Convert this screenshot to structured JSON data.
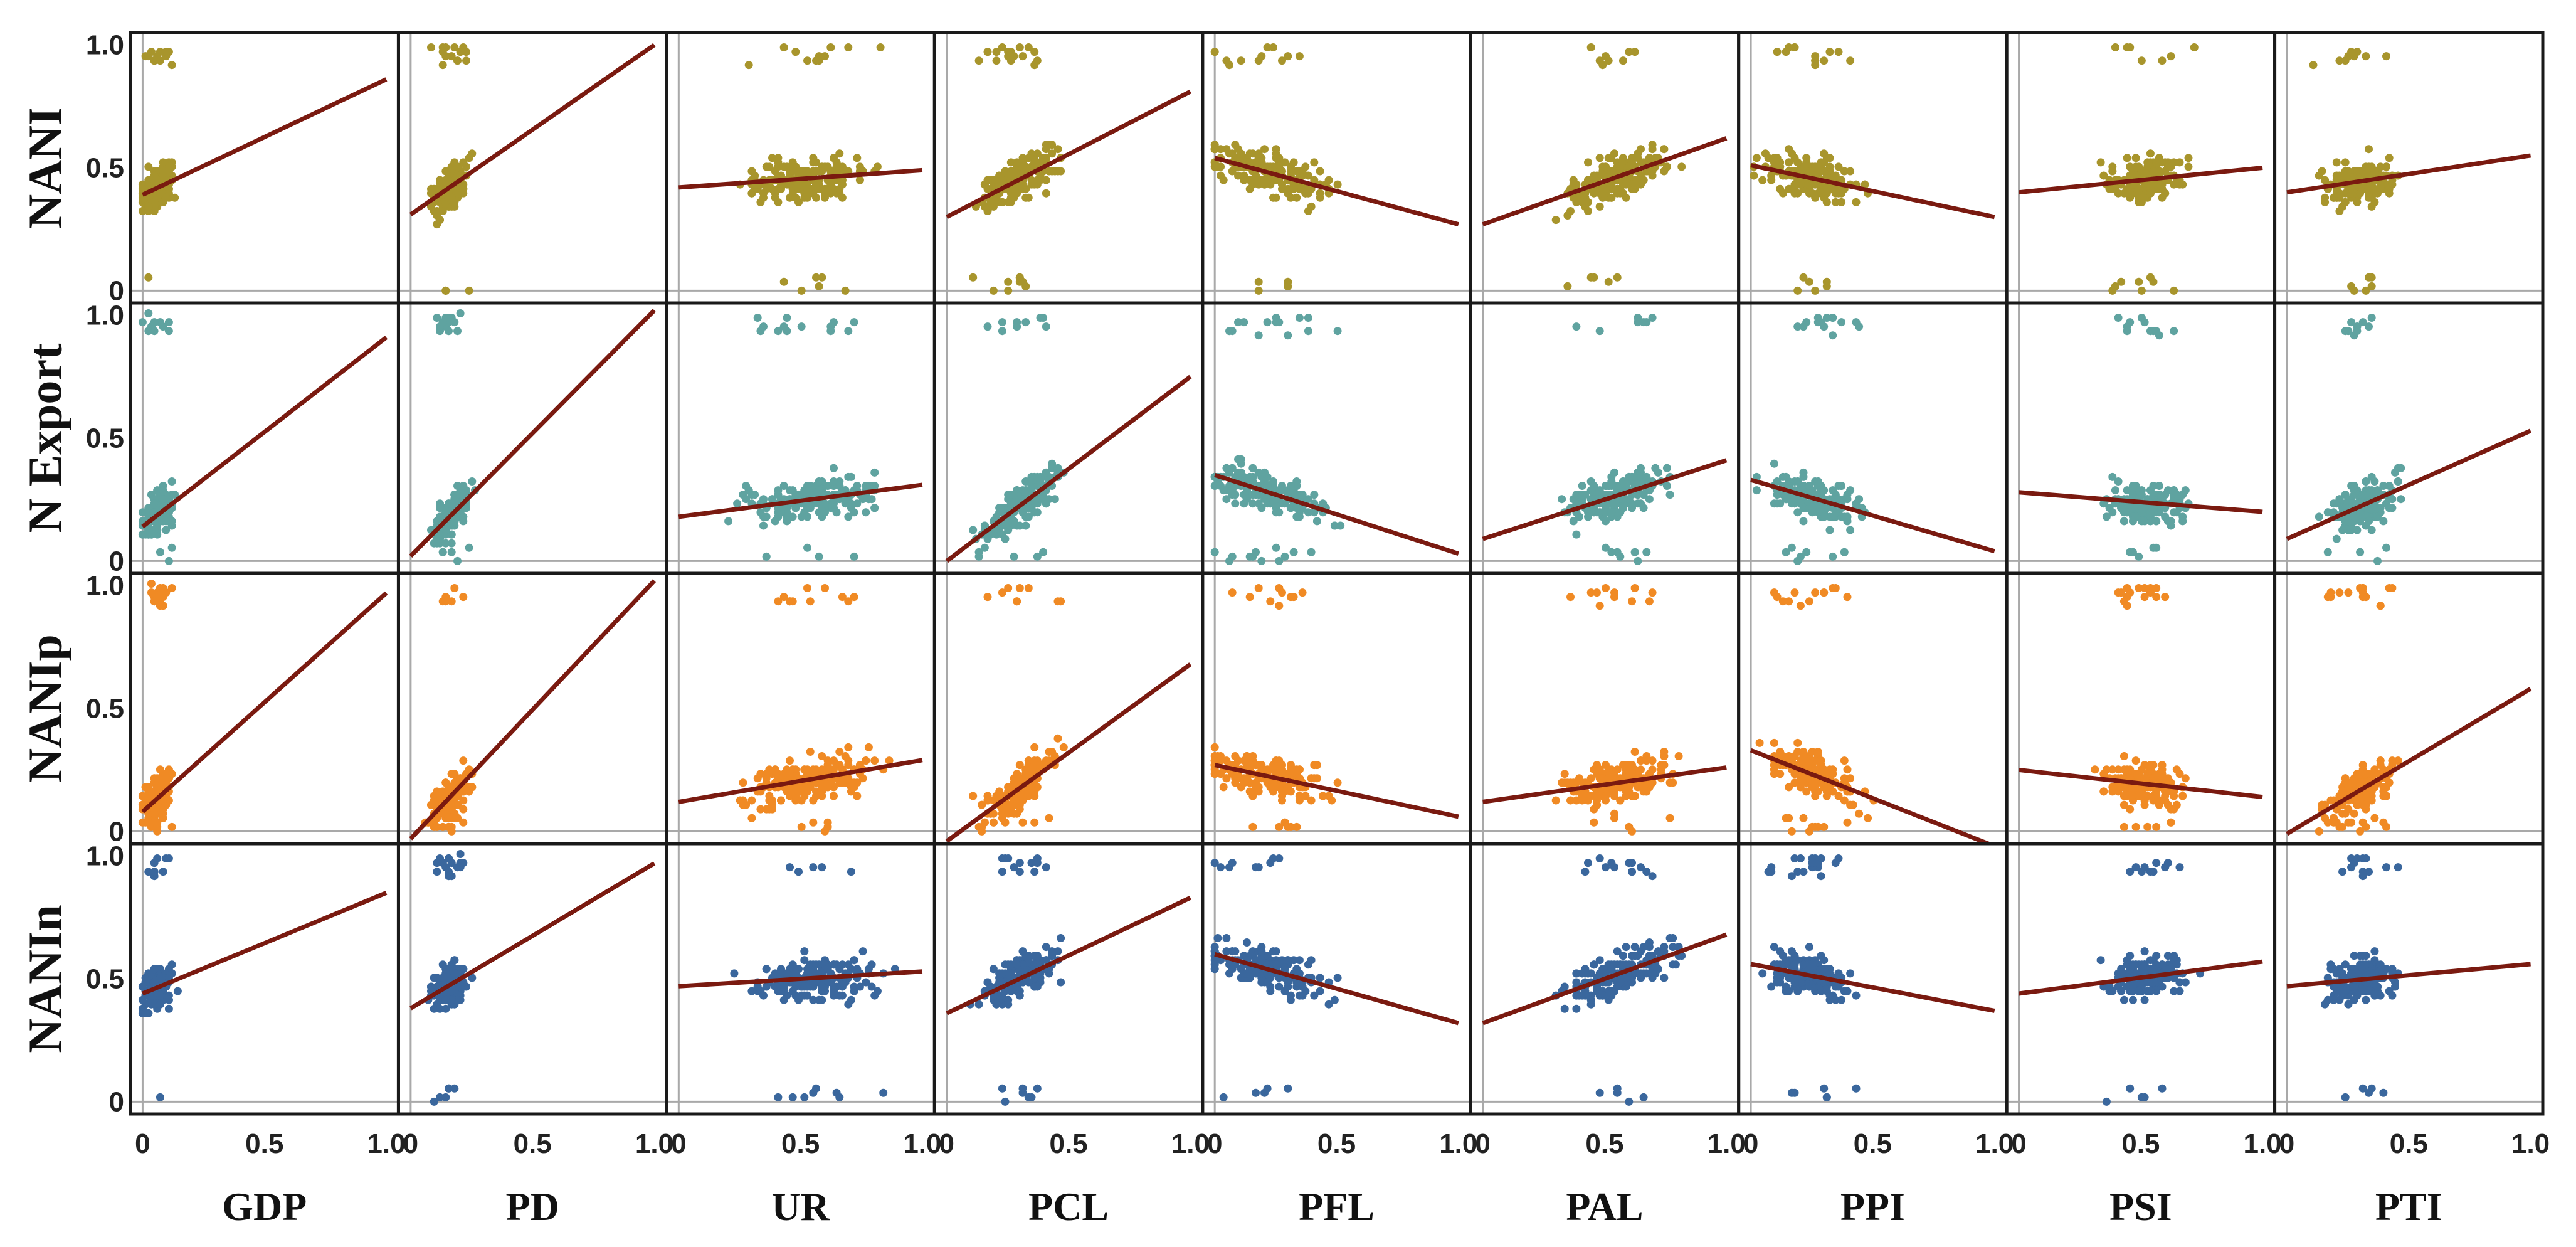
{
  "chart_data": {
    "type": "scatter-matrix",
    "title": "",
    "rows": [
      "NANI",
      "N Export",
      "NANIp",
      "NANIn"
    ],
    "columns": [
      "GDP",
      "PD",
      "UR",
      "PCL",
      "PFL",
      "PAL",
      "PPI",
      "PSI",
      "PTI"
    ],
    "y_ticks": [
      [
        "0",
        "0.5",
        "1.0"
      ],
      [
        "0",
        "0.5",
        "1.0"
      ],
      [
        "0",
        "0.5",
        "1.0"
      ],
      [
        "0",
        "0.5",
        "1.0"
      ]
    ],
    "x_ticks": [
      [
        "0",
        "0.5",
        "1.0"
      ],
      [
        "0",
        "0.5",
        "1.0"
      ],
      [
        "0",
        "0.5",
        "1.0"
      ],
      [
        "0",
        "0.5",
        "1.0"
      ],
      [
        "0",
        "0.5",
        "1.0"
      ],
      [
        "0",
        "0.5",
        "1.0"
      ],
      [
        "0",
        "0.5",
        "1.0"
      ],
      [
        "0",
        "0.5",
        "1.0"
      ],
      [
        "0",
        "0.5",
        "1.0"
      ]
    ],
    "xlim": [
      -0.05,
      1.05
    ],
    "ylim": [
      -0.05,
      1.05
    ],
    "row_colors": [
      "#a8952c",
      "#5fa3a0",
      "#f08a24",
      "#3a679d"
    ],
    "fit_line_color": "#7a1a10",
    "grid": false,
    "regression_lines": [
      [
        [
          0.39,
          0.86
        ],
        [
          0.31,
          1.0
        ],
        [
          0.42,
          0.49
        ],
        [
          0.3,
          0.81
        ],
        [
          0.54,
          0.27
        ],
        [
          0.27,
          0.62
        ],
        [
          0.51,
          0.3
        ],
        [
          0.4,
          0.5
        ],
        [
          0.4,
          0.55
        ]
      ],
      [
        [
          0.14,
          0.91
        ],
        [
          0.02,
          1.02
        ],
        [
          0.18,
          0.31
        ],
        [
          0.0,
          0.75
        ],
        [
          0.35,
          0.03
        ],
        [
          0.09,
          0.41
        ],
        [
          0.33,
          0.04
        ],
        [
          0.28,
          0.2
        ],
        [
          0.09,
          0.53
        ]
      ],
      [
        [
          0.08,
          0.97
        ],
        [
          -0.03,
          1.02
        ],
        [
          0.12,
          0.29
        ],
        [
          -0.04,
          0.68
        ],
        [
          0.27,
          0.06
        ],
        [
          0.12,
          0.26
        ],
        [
          0.33,
          -0.06
        ],
        [
          0.25,
          0.14
        ],
        [
          -0.01,
          0.58
        ]
      ],
      [
        [
          0.44,
          0.85
        ],
        [
          0.38,
          0.97
        ],
        [
          0.47,
          0.53
        ],
        [
          0.36,
          0.83
        ],
        [
          0.6,
          0.32
        ],
        [
          0.32,
          0.68
        ],
        [
          0.56,
          0.37
        ],
        [
          0.44,
          0.57
        ],
        [
          0.47,
          0.56
        ]
      ]
    ]
  }
}
